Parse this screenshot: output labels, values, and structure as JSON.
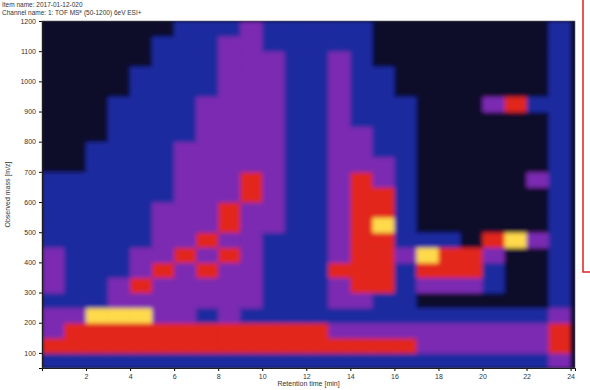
{
  "chart_data": {
    "type": "heatmap",
    "title": "Item name: 2017-01-12-020",
    "subtitle": "Channel name: 1: TOF MSᴱ (50-1200) 6eV ESI+",
    "x_label": "Retention time [min]",
    "y_label": "Observed mass [m/z]",
    "xlim": [
      0,
      24.2
    ],
    "ylim": [
      50,
      1200
    ],
    "xticks": [
      2,
      4,
      6,
      8,
      10,
      12,
      14,
      16,
      18,
      20,
      22,
      24
    ],
    "yticks": [
      100,
      200,
      300,
      400,
      500,
      600,
      700,
      800,
      900,
      1000,
      1100,
      1200
    ],
    "zlim": [
      0,
      4
    ],
    "x_edges": [
      0,
      1,
      2,
      3,
      4,
      5,
      6,
      7,
      8,
      9,
      10,
      11,
      12,
      13,
      14,
      15,
      16,
      17,
      18,
      19,
      20,
      21,
      22,
      23,
      24
    ],
    "y_edges": [
      50,
      100,
      150,
      200,
      250,
      300,
      350,
      400,
      450,
      500,
      550,
      600,
      650,
      700,
      750,
      800,
      850,
      900,
      950,
      1000,
      1050,
      1100,
      1150,
      1200
    ],
    "cells": [
      [
        1,
        1,
        1,
        1,
        1,
        1,
        1,
        1,
        1,
        1,
        1,
        1,
        1,
        1,
        1,
        1,
        1,
        1,
        1,
        1,
        1,
        1,
        1,
        2
      ],
      [
        3,
        3,
        3,
        3,
        3,
        3,
        3,
        3,
        3,
        3,
        3,
        3,
        3,
        3,
        3,
        3,
        3,
        2,
        2,
        2,
        2,
        2,
        2,
        3
      ],
      [
        2,
        3,
        3,
        3,
        3,
        3,
        3,
        3,
        3,
        3,
        3,
        3,
        3,
        2,
        2,
        2,
        2,
        2,
        2,
        2,
        2,
        2,
        2,
        3
      ],
      [
        2,
        2,
        4,
        4,
        4,
        2,
        2,
        1,
        2,
        1,
        1,
        1,
        1,
        1,
        1,
        1,
        1,
        1,
        1,
        1,
        1,
        1,
        1,
        2
      ],
      [
        1,
        1,
        1,
        2,
        2,
        2,
        2,
        2,
        2,
        2,
        1,
        1,
        1,
        2,
        2,
        1,
        1,
        0,
        0,
        0,
        0,
        0,
        0,
        1
      ],
      [
        2,
        1,
        1,
        2,
        3,
        2,
        2,
        2,
        2,
        2,
        1,
        1,
        1,
        2,
        3,
        3,
        1,
        2,
        2,
        2,
        1,
        0,
        0,
        1
      ],
      [
        2,
        1,
        1,
        1,
        2,
        3,
        2,
        3,
        2,
        2,
        1,
        1,
        1,
        3,
        3,
        3,
        1,
        3,
        3,
        3,
        1,
        0,
        0,
        1
      ],
      [
        2,
        1,
        1,
        1,
        2,
        2,
        3,
        2,
        3,
        2,
        1,
        1,
        1,
        2,
        3,
        3,
        2,
        4,
        3,
        3,
        2,
        0,
        0,
        1
      ],
      [
        1,
        1,
        1,
        1,
        1,
        2,
        2,
        3,
        2,
        2,
        1,
        1,
        1,
        2,
        3,
        3,
        1,
        1,
        1,
        0,
        3,
        4,
        2,
        1
      ],
      [
        1,
        1,
        1,
        1,
        1,
        2,
        2,
        2,
        3,
        2,
        2,
        1,
        1,
        2,
        3,
        4,
        1,
        0,
        0,
        0,
        0,
        0,
        0,
        1
      ],
      [
        1,
        1,
        1,
        1,
        1,
        2,
        2,
        2,
        3,
        2,
        2,
        1,
        1,
        2,
        3,
        3,
        1,
        0,
        0,
        0,
        0,
        0,
        0,
        1
      ],
      [
        1,
        1,
        1,
        1,
        1,
        1,
        2,
        2,
        2,
        3,
        2,
        1,
        1,
        2,
        3,
        3,
        1,
        0,
        0,
        0,
        0,
        0,
        0,
        1
      ],
      [
        1,
        1,
        1,
        1,
        1,
        1,
        2,
        2,
        2,
        3,
        2,
        1,
        1,
        2,
        3,
        2,
        1,
        0,
        0,
        0,
        0,
        0,
        2,
        1
      ],
      [
        0,
        0,
        1,
        1,
        1,
        1,
        2,
        2,
        2,
        2,
        2,
        1,
        1,
        2,
        2,
        2,
        1,
        0,
        0,
        0,
        0,
        0,
        0,
        1
      ],
      [
        0,
        0,
        1,
        1,
        1,
        1,
        2,
        2,
        2,
        2,
        2,
        1,
        1,
        2,
        2,
        1,
        1,
        0,
        0,
        0,
        0,
        0,
        0,
        1
      ],
      [
        0,
        0,
        0,
        1,
        1,
        1,
        1,
        2,
        2,
        2,
        2,
        1,
        1,
        2,
        2,
        1,
        1,
        0,
        0,
        0,
        0,
        0,
        0,
        1
      ],
      [
        0,
        0,
        0,
        1,
        1,
        1,
        1,
        2,
        2,
        2,
        2,
        1,
        1,
        2,
        1,
        1,
        1,
        0,
        0,
        0,
        0,
        0,
        0,
        1
      ],
      [
        0,
        0,
        0,
        1,
        1,
        1,
        1,
        2,
        2,
        2,
        2,
        1,
        1,
        2,
        1,
        1,
        1,
        0,
        0,
        0,
        2,
        3,
        1,
        1
      ],
      [
        0,
        0,
        0,
        0,
        1,
        1,
        1,
        1,
        2,
        2,
        2,
        1,
        1,
        2,
        1,
        1,
        0,
        0,
        0,
        0,
        0,
        0,
        0,
        1
      ],
      [
        0,
        0,
        0,
        0,
        1,
        1,
        1,
        1,
        2,
        2,
        2,
        1,
        1,
        2,
        1,
        1,
        0,
        0,
        0,
        0,
        0,
        0,
        0,
        1
      ],
      [
        0,
        0,
        0,
        0,
        0,
        1,
        1,
        1,
        2,
        2,
        2,
        1,
        1,
        2,
        1,
        0,
        0,
        0,
        0,
        0,
        0,
        0,
        0,
        1
      ],
      [
        0,
        0,
        0,
        0,
        0,
        1,
        1,
        1,
        2,
        2,
        1,
        1,
        1,
        1,
        1,
        0,
        0,
        0,
        0,
        0,
        0,
        0,
        0,
        1
      ],
      [
        0,
        0,
        0,
        0,
        0,
        0,
        1,
        1,
        1,
        2,
        1,
        1,
        1,
        1,
        1,
        0,
        0,
        0,
        0,
        0,
        0,
        0,
        0,
        1
      ]
    ]
  }
}
